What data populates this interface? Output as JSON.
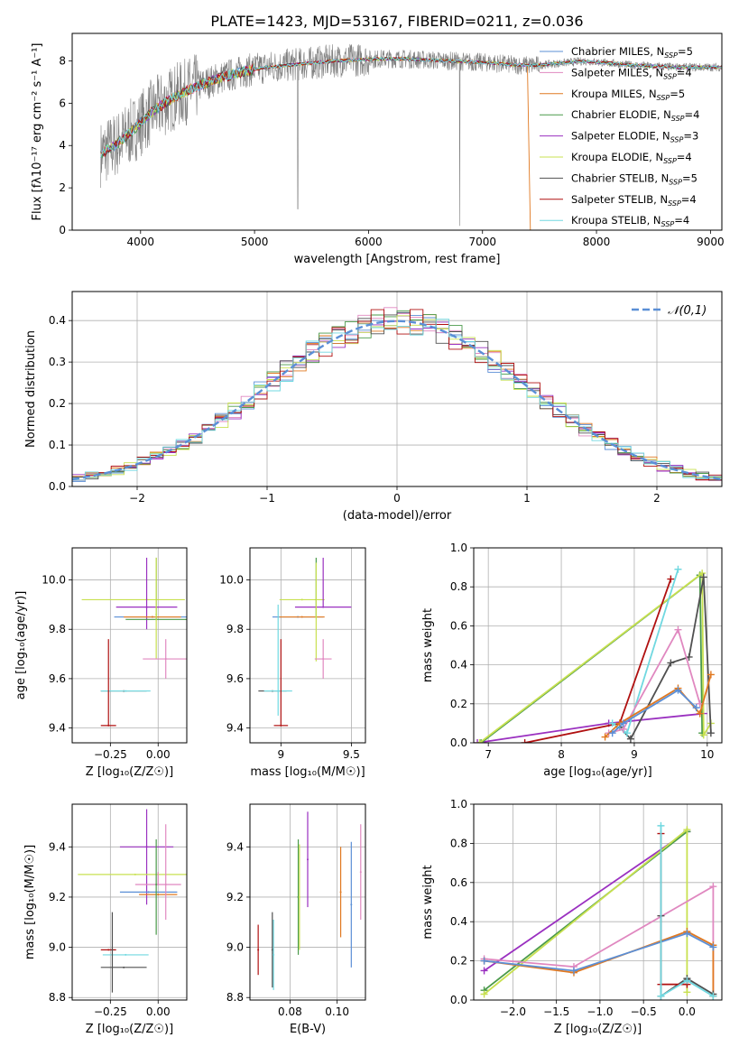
{
  "title": "PLATE=1423, MJD=53167, FIBERID=0211, z=0.036",
  "colors": {
    "chabrier_miles": "#5b8fd6",
    "salpeter_miles": "#e088c0",
    "kroupa_miles": "#e07820",
    "chabrier_elodie": "#4a9a4a",
    "salpeter_elodie": "#9a30c0",
    "kroupa_elodie": "#c8e050",
    "chabrier_stelib": "#505050",
    "salpeter_stelib": "#b01010",
    "kroupa_stelib": "#70d8e0",
    "data": "#808080",
    "normal": "#5b8fd6"
  },
  "legend": [
    {
      "key": "chabrier_miles",
      "label": "Chabrier MILES, N",
      "sub": "SSP",
      "suffix": "=5"
    },
    {
      "key": "salpeter_miles",
      "label": "Salpeter MILES, N",
      "sub": "SSP",
      "suffix": "=4"
    },
    {
      "key": "kroupa_miles",
      "label": "Kroupa MILES, N",
      "sub": "SSP",
      "suffix": "=5"
    },
    {
      "key": "chabrier_elodie",
      "label": "Chabrier ELODIE, N",
      "sub": "SSP",
      "suffix": "=4"
    },
    {
      "key": "salpeter_elodie",
      "label": "Salpeter ELODIE, N",
      "sub": "SSP",
      "suffix": "=3"
    },
    {
      "key": "kroupa_elodie",
      "label": "Kroupa ELODIE, N",
      "sub": "SSP",
      "suffix": "=4"
    },
    {
      "key": "chabrier_stelib",
      "label": "Chabrier STELIB, N",
      "sub": "SSP",
      "suffix": "=5"
    },
    {
      "key": "salpeter_stelib",
      "label": "Salpeter STELIB, N",
      "sub": "SSP",
      "suffix": "=4"
    },
    {
      "key": "kroupa_stelib",
      "label": "Kroupa STELIB, N",
      "sub": "SSP",
      "suffix": "=4"
    }
  ],
  "chart_data": [
    {
      "id": "spectrum",
      "type": "line",
      "xlabel": "wavelength [Angstrom, rest frame]",
      "ylabel": "Flux [fλ10⁻¹⁷ erg cm⁻² s⁻¹ A⁻¹]",
      "xlim": [
        3400,
        9100
      ],
      "ylim": [
        0,
        9.3
      ],
      "xticks": [
        4000,
        5000,
        6000,
        7000,
        8000,
        9000
      ],
      "yticks": [
        0,
        2,
        4,
        6,
        8
      ],
      "grid": false,
      "legend_position": "top-right",
      "series_anchor_x": [
        3650,
        3800,
        3950,
        4100,
        4300,
        4500,
        4700,
        4900,
        5100,
        5300,
        5500,
        5700,
        5900,
        6100,
        6300,
        6500,
        6700,
        6900,
        7100,
        7300,
        7500,
        7700,
        7900,
        8100,
        8300,
        8500,
        8700,
        8900,
        9100
      ],
      "series_anchor_y": [
        3.6,
        4.1,
        4.8,
        5.6,
        6.3,
        6.8,
        7.2,
        7.5,
        7.7,
        7.8,
        7.9,
        8.0,
        8.05,
        8.1,
        8.1,
        8.05,
        8.0,
        7.95,
        7.9,
        7.8,
        7.8,
        7.9,
        8.0,
        7.9,
        7.8,
        7.75,
        7.7,
        7.7,
        7.7
      ]
    },
    {
      "id": "residuals",
      "type": "histogram",
      "xlabel": "(data-model)/error",
      "ylabel": "Normed distribution",
      "xlim": [
        -2.5,
        2.5
      ],
      "ylim": [
        0,
        0.47
      ],
      "xticks": [
        -2,
        -1,
        0,
        1,
        2
      ],
      "yticks": [
        0.0,
        0.1,
        0.2,
        0.3,
        0.4
      ],
      "grid": true,
      "legend_position": "top-right",
      "legend_label": "𝒩(0,1)",
      "bins_start": -2.5,
      "bin_width": 0.1,
      "reference_curve": "normal(0,1)"
    },
    {
      "id": "age_vs_Z",
      "type": "scatter",
      "xlabel": "Z [log₁₀(Z/Z☉)]",
      "ylabel": "age  [log₁₀(age/yr)]",
      "xlim": [
        -0.45,
        0.15
      ],
      "ylim": [
        9.34,
        10.13
      ],
      "xticks": [
        -0.25,
        0.0
      ],
      "xticklabels": [
        "−0.25",
        "0.00"
      ],
      "yticks": [
        9.4,
        9.6,
        9.8,
        10.0
      ],
      "grid": true,
      "points": [
        {
          "key": "kroupa_elodie",
          "x": -0.06,
          "y": 9.92,
          "xerr": [
            0.34,
            0.2
          ],
          "yerr": 0
        },
        {
          "key": "salpeter_elodie",
          "x": -0.06,
          "y": 9.89,
          "xerr": 0.16,
          "yerr": [
            0.09,
            0.2
          ]
        },
        {
          "key": "chabrier_miles",
          "x": -0.03,
          "y": 9.85,
          "xerr": 0.2,
          "yerr": 0
        },
        {
          "key": "kroupa_miles",
          "x": -0.03,
          "y": 9.85,
          "xerr": 0.15,
          "yerr": 0
        },
        {
          "key": "chabrier_elodie",
          "x": -0.01,
          "y": 9.84,
          "xerr": 0.16,
          "yerr": [
            0,
            0.25
          ]
        },
        {
          "key": "kroupa_elodie",
          "x": -0.01,
          "y": 9.86,
          "xerr": 0,
          "yerr": [
            0.18,
            0.23
          ]
        },
        {
          "key": "salpeter_miles",
          "x": 0.04,
          "y": 9.68,
          "xerr": 0.12,
          "yerr": 0.08
        },
        {
          "key": "chabrier_stelib",
          "x": -0.18,
          "y": 9.55,
          "xerr": 0.12,
          "yerr": 0
        },
        {
          "key": "kroupa_stelib",
          "x": -0.17,
          "y": 9.55,
          "xerr": 0.13,
          "yerr": 0
        },
        {
          "key": "salpeter_stelib",
          "x": -0.26,
          "y": 9.41,
          "xerr": 0.04,
          "yerr": [
            0,
            0.35
          ]
        }
      ]
    },
    {
      "id": "age_vs_mass",
      "type": "scatter",
      "xlabel": "mass [log₁₀(M/M☉)]",
      "ylabel": "",
      "xlim": [
        8.78,
        9.6
      ],
      "ylim": [
        9.34,
        10.13
      ],
      "xticks": [
        9.0,
        9.5
      ],
      "yticks": [
        9.4,
        9.6,
        9.8,
        10.0
      ],
      "grid": true,
      "points": [
        {
          "key": "kroupa_elodie",
          "x": 9.15,
          "y": 9.92,
          "xerr": 0.16,
          "yerr": 0
        },
        {
          "key": "salpeter_elodie",
          "x": 9.3,
          "y": 9.89,
          "xerr": 0.2,
          "yerr": [
            0,
            0.2
          ]
        },
        {
          "key": "chabrier_miles",
          "x": 9.12,
          "y": 9.85,
          "xerr": 0.18,
          "yerr": 0
        },
        {
          "key": "kroupa_miles",
          "x": 9.15,
          "y": 9.85,
          "xerr": 0.16,
          "yerr": 0
        },
        {
          "key": "chabrier_elodie",
          "x": 9.25,
          "y": 9.85,
          "xerr": 0,
          "yerr": [
            0,
            0.24
          ]
        },
        {
          "key": "kroupa_elodie",
          "x": 9.25,
          "y": 9.85,
          "xerr": 0,
          "yerr": [
            0.18,
            0.22
          ]
        },
        {
          "key": "salpeter_miles",
          "x": 9.3,
          "y": 9.68,
          "xerr": 0.06,
          "yerr": 0.08
        },
        {
          "key": "chabrier_stelib",
          "x": 8.94,
          "y": 9.55,
          "xerr": 0.1,
          "yerr": 0
        },
        {
          "key": "kroupa_stelib",
          "x": 8.98,
          "y": 9.55,
          "xerr": 0.1,
          "yerr": [
            0.1,
            0.35
          ]
        },
        {
          "key": "salpeter_stelib",
          "x": 9.0,
          "y": 9.41,
          "xerr": 0.05,
          "yerr": [
            0,
            0.35
          ]
        }
      ]
    },
    {
      "id": "massweight_vs_age",
      "type": "line",
      "xlabel": "age  [log₁₀(age/yr)]",
      "ylabel": "mass weight",
      "xlim": [
        6.8,
        10.2
      ],
      "ylim": [
        0,
        1.0
      ],
      "xticks": [
        7,
        8,
        9,
        10
      ],
      "yticks": [
        0.0,
        0.2,
        0.4,
        0.6,
        0.8,
        1.0
      ],
      "grid": true,
      "series": [
        {
          "key": "salpeter_elodie",
          "x": [
            6.85,
            8.65,
            9.95
          ],
          "y": [
            0.0,
            0.1,
            0.15
          ]
        },
        {
          "key": "chabrier_elodie",
          "x": [
            6.9,
            9.9,
            9.93
          ],
          "y": [
            0.0,
            0.86,
            0.05
          ]
        },
        {
          "key": "kroupa_elodie",
          "x": [
            6.88,
            9.93,
            9.95,
            10.05
          ],
          "y": [
            0.0,
            0.87,
            0.04,
            0.1
          ]
        },
        {
          "key": "salpeter_stelib",
          "x": [
            7.5,
            8.8,
            9.5
          ],
          "y": [
            0.0,
            0.1,
            0.84
          ]
        },
        {
          "key": "chabrier_stelib",
          "x": [
            8.8,
            8.95,
            9.5,
            9.75,
            9.95,
            10.05
          ],
          "y": [
            0.08,
            0.02,
            0.41,
            0.44,
            0.85,
            0.05
          ]
        },
        {
          "key": "kroupa_stelib",
          "x": [
            8.7,
            8.9,
            9.6
          ],
          "y": [
            0.1,
            0.05,
            0.89
          ]
        },
        {
          "key": "salpeter_miles",
          "x": [
            8.65,
            8.85,
            9.6,
            9.9
          ],
          "y": [
            0.05,
            0.07,
            0.58,
            0.2
          ]
        },
        {
          "key": "kroupa_miles",
          "x": [
            8.6,
            8.8,
            9.6,
            9.9,
            10.05
          ],
          "y": [
            0.03,
            0.1,
            0.28,
            0.15,
            0.35
          ]
        },
        {
          "key": "chabrier_miles",
          "x": [
            8.7,
            8.85,
            9.6,
            9.85
          ],
          "y": [
            0.05,
            0.1,
            0.27,
            0.18
          ]
        }
      ]
    },
    {
      "id": "mass_vs_Z",
      "type": "scatter",
      "xlabel": "Z [log₁₀(Z/Z☉)]",
      "ylabel": "mass [log₁₀(M/M☉)]",
      "xlim": [
        -0.45,
        0.15
      ],
      "ylim": [
        8.79,
        9.57
      ],
      "xticks": [
        -0.25,
        0.0
      ],
      "xticklabels": [
        "−0.25",
        "0.00"
      ],
      "yticks": [
        8.8,
        9.0,
        9.2,
        9.4
      ],
      "grid": true,
      "points": [
        {
          "key": "salpeter_elodie",
          "x": -0.06,
          "y": 9.4,
          "xerr": 0.14,
          "yerr": [
            0.23,
            0.15
          ]
        },
        {
          "key": "kroupa_elodie",
          "x": -0.12,
          "y": 9.29,
          "xerr": 0.3,
          "yerr": 0
        },
        {
          "key": "salpeter_miles",
          "x": 0.0,
          "y": 9.25,
          "xerr": 0.12,
          "yerr": [
            0,
            0.05
          ]
        },
        {
          "key": "chabrier_miles",
          "x": -0.05,
          "y": 9.22,
          "xerr": 0.15,
          "yerr": 0
        },
        {
          "key": "kroupa_miles",
          "x": 0.0,
          "y": 9.21,
          "xerr": 0.1,
          "yerr": 0
        },
        {
          "key": "chabrier_elodie",
          "x": -0.01,
          "y": 9.25,
          "xerr": 0,
          "yerr": [
            0.2,
            0.18
          ]
        },
        {
          "key": "salpeter_miles",
          "x": 0.04,
          "y": 9.25,
          "xerr": 0,
          "yerr": [
            0.14,
            0.24
          ]
        },
        {
          "key": "kroupa_stelib",
          "x": -0.17,
          "y": 8.97,
          "xerr": 0.12,
          "yerr": 0
        },
        {
          "key": "chabrier_stelib",
          "x": -0.18,
          "y": 8.92,
          "xerr": 0.12,
          "yerr": 0
        },
        {
          "key": "salpeter_stelib",
          "x": -0.26,
          "y": 8.99,
          "xerr": 0.04,
          "yerr": 0
        },
        {
          "key": "chabrier_stelib",
          "x": -0.24,
          "y": 8.99,
          "xerr": 0,
          "yerr": [
            0.17,
            0.15
          ]
        }
      ]
    },
    {
      "id": "mass_vs_ebv",
      "type": "scatter",
      "xlabel": "E(B-V)",
      "ylabel": "",
      "xlim": [
        0.063,
        0.112
      ],
      "ylim": [
        8.79,
        9.57
      ],
      "xticks": [
        0.08,
        0.1
      ],
      "xticklabels": [
        "0.08",
        "0.10"
      ],
      "yticks": [
        8.8,
        9.0,
        9.2,
        9.4
      ],
      "grid": true,
      "points": [
        {
          "key": "salpeter_stelib",
          "x": 0.0665,
          "y": 8.99,
          "yerr": 0.1
        },
        {
          "key": "chabrier_stelib",
          "x": 0.0725,
          "y": 8.99,
          "yerr": 0.15
        },
        {
          "key": "kroupa_stelib",
          "x": 0.073,
          "y": 8.97,
          "yerr": 0.14
        },
        {
          "key": "chabrier_elodie",
          "x": 0.0835,
          "y": 9.2,
          "yerr": 0.23
        },
        {
          "key": "kroupa_elodie",
          "x": 0.084,
          "y": 9.2,
          "yerr": 0.21
        },
        {
          "key": "salpeter_elodie",
          "x": 0.0875,
          "y": 9.35,
          "yerr": 0.19
        },
        {
          "key": "kroupa_miles",
          "x": 0.1015,
          "y": 9.22,
          "yerr": 0.18
        },
        {
          "key": "chabrier_miles",
          "x": 0.106,
          "y": 9.17,
          "yerr": 0.25
        },
        {
          "key": "salpeter_miles",
          "x": 0.11,
          "y": 9.3,
          "yerr": 0.19
        }
      ]
    },
    {
      "id": "massweight_vs_Z",
      "type": "line",
      "xlabel": "Z [log₁₀(Z/Z☉)]",
      "ylabel": "mass weight",
      "xlim": [
        -2.45,
        0.4
      ],
      "ylim": [
        0,
        1.0
      ],
      "xticks": [
        -2.0,
        -1.5,
        -1.0,
        -0.5,
        0.0
      ],
      "xticklabels": [
        "−2.0",
        "−1.5",
        "−1.0",
        "−0.5",
        "0.0"
      ],
      "yticks": [
        0.0,
        0.2,
        0.4,
        0.6,
        0.8,
        1.0
      ],
      "grid": true,
      "series": [
        {
          "key": "salpeter_elodie",
          "x": [
            -2.33,
            0.0
          ],
          "y": [
            0.15,
            0.86
          ]
        },
        {
          "key": "chabrier_elodie",
          "x": [
            -2.33,
            0.0
          ],
          "y": [
            0.05,
            0.86
          ]
        },
        {
          "key": "kroupa_elodie",
          "x": [
            -2.33,
            0.0,
            0.0
          ],
          "y": [
            0.03,
            0.87,
            0.04
          ]
        },
        {
          "key": "salpeter_miles",
          "x": [
            -2.33,
            -1.3,
            0.3,
            0.3
          ],
          "y": [
            0.21,
            0.17,
            0.58,
            0.02
          ]
        },
        {
          "key": "kroupa_miles",
          "x": [
            -2.33,
            -1.3,
            0.0,
            0.3,
            0.3
          ],
          "y": [
            0.2,
            0.14,
            0.35,
            0.28,
            0.02
          ]
        },
        {
          "key": "chabrier_miles",
          "x": [
            -2.33,
            -1.3,
            0.0,
            0.3
          ],
          "y": [
            0.2,
            0.15,
            0.34,
            0.27
          ]
        },
        {
          "key": "chabrier_stelib",
          "x": [
            -0.3,
            -0.3,
            0.0,
            0.3
          ],
          "y": [
            0.43,
            0.02,
            0.11,
            0.03
          ]
        },
        {
          "key": "salpeter_stelib",
          "x": [
            -0.3,
            -0.3,
            0.0,
            0.0
          ],
          "y": [
            0.85,
            0.08,
            0.08,
            0.1
          ]
        },
        {
          "key": "kroupa_stelib",
          "x": [
            -0.3,
            -0.3,
            0.0,
            0.3
          ],
          "y": [
            0.89,
            0.02,
            0.1,
            0.02
          ]
        }
      ]
    }
  ]
}
